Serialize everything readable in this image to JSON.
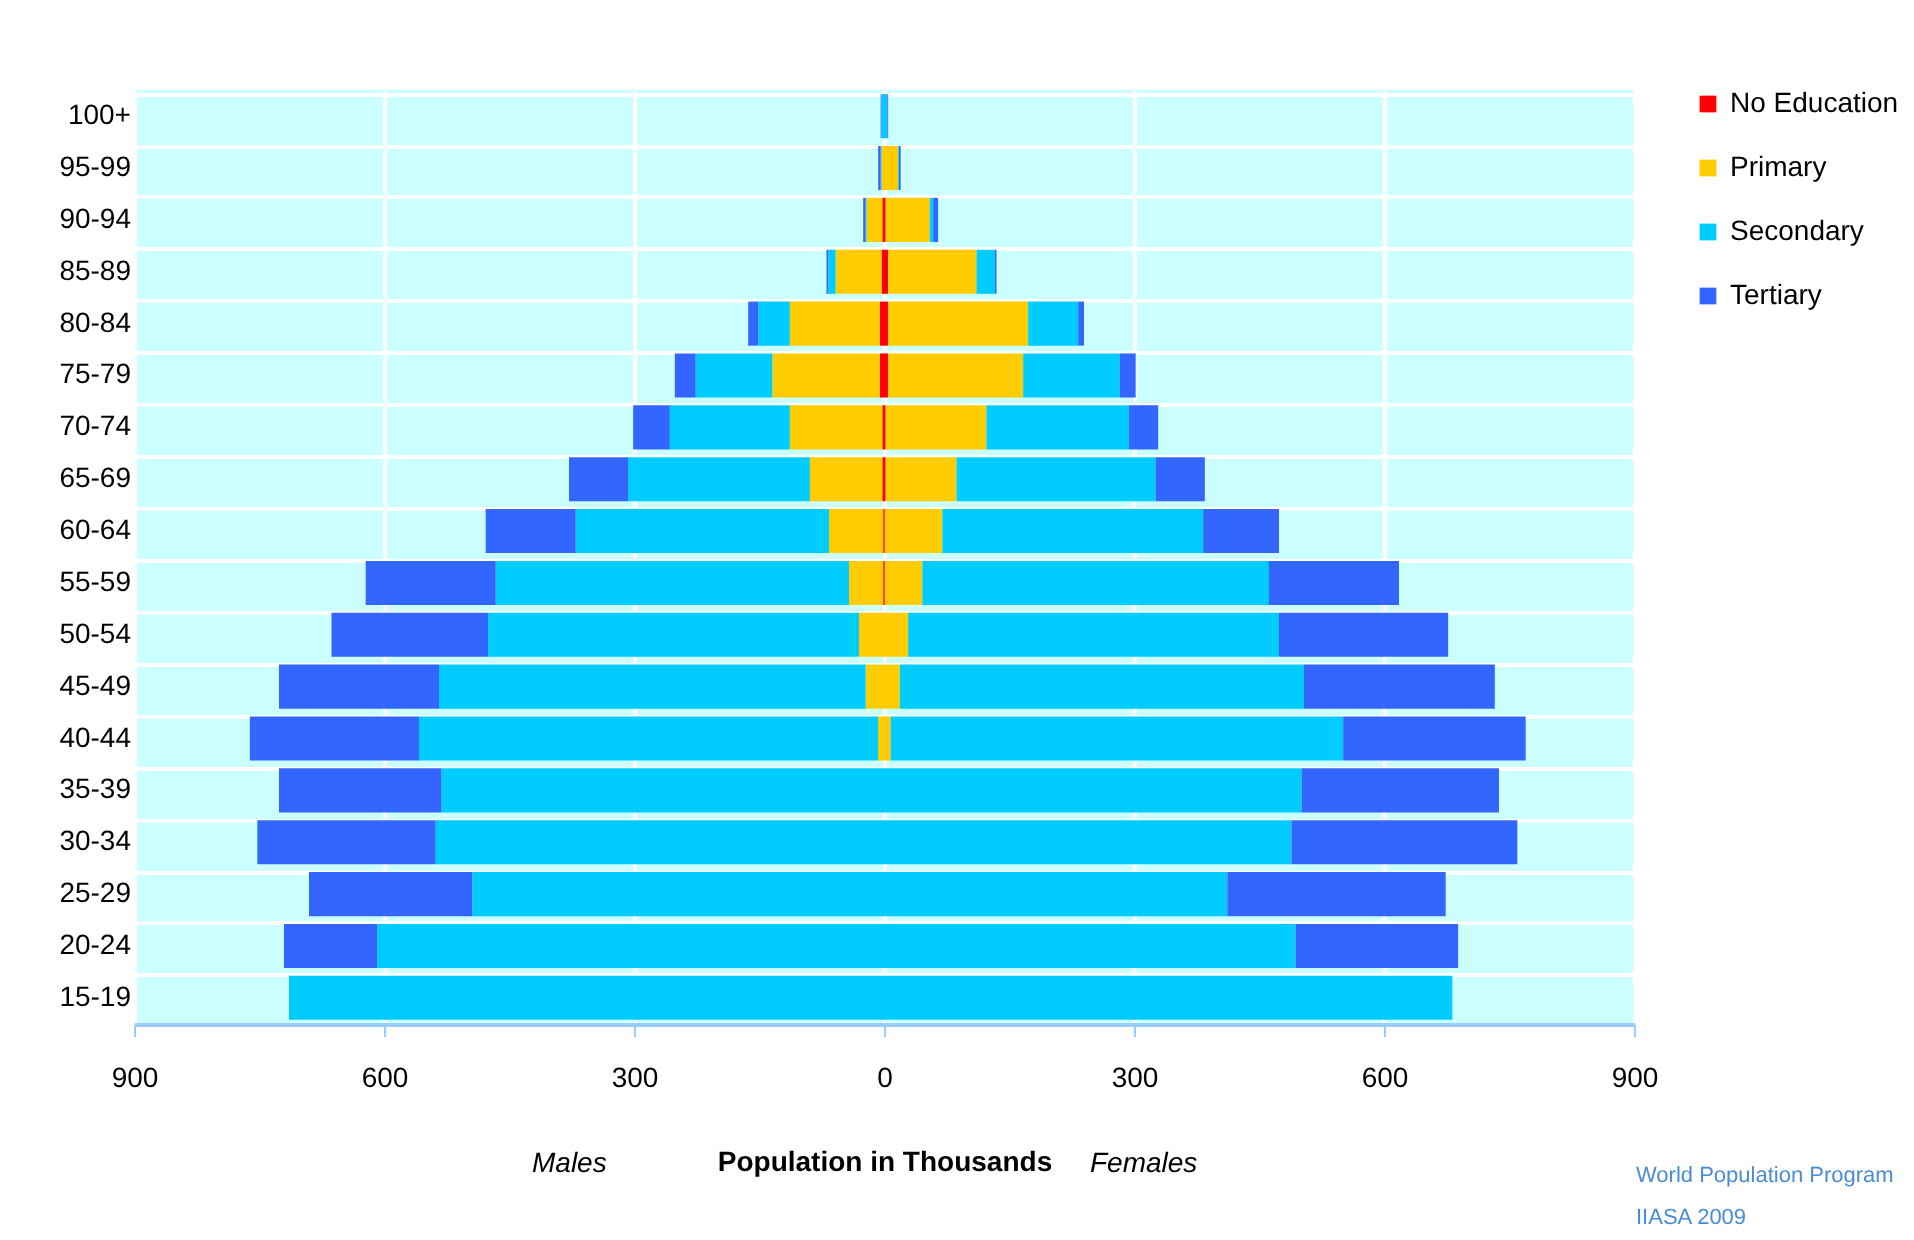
{
  "chart_data": {
    "type": "bar",
    "orientation": "horizontal",
    "stacked": true,
    "xlabel": "Population in Thousands",
    "annotations": [
      "Males",
      "Females",
      "World Population Program",
      "IIASA 2009"
    ],
    "categories": [
      "100+",
      "95-99",
      "90-94",
      "85-89",
      "80-84",
      "75-79",
      "70-74",
      "65-69",
      "60-64",
      "55-59",
      "50-54",
      "45-49",
      "40-44",
      "35-39",
      "30-34",
      "25-29",
      "20-24",
      "15-19"
    ],
    "series": [
      {
        "color": "#ff0000",
        "values": [
          null,
          null,
          -2,
          -3,
          -5,
          -5,
          -2,
          -2,
          -1,
          -1,
          null,
          null,
          null,
          null,
          null,
          null,
          null,
          null
        ]
      },
      {
        "color": "#ffcc00",
        "values": [
          null,
          -3,
          -19,
          -55,
          -108,
          -129,
          -111,
          -87,
          -65,
          -41,
          -30,
          -22,
          -7,
          null,
          null,
          null,
          null,
          null
        ]
      },
      {
        "color": "#00ccff",
        "values": [
          -3,
          -1,
          -1,
          -9,
          -38,
          -92,
          -144,
          -218,
          -304,
          -424,
          -445,
          -512,
          -551,
          -531,
          -538,
          -494,
          -608,
          -714
        ]
      },
      {
        "color": "#3366ff",
        "values": [
          -1,
          -3,
          -3,
          -2,
          -12,
          -25,
          -44,
          -71,
          -108,
          -156,
          -188,
          -192,
          -203,
          -195,
          -214,
          -196,
          -112,
          null
        ]
      },
      {
        "name": "No Education",
        "color": "#ff0000",
        "values": [
          null,
          null,
          2,
          5,
          5,
          5,
          2,
          2,
          1,
          1,
          null,
          null,
          null,
          null,
          null,
          null,
          null,
          null
        ]
      },
      {
        "name": "Primary",
        "color": "#ffcc00",
        "values": [
          null,
          17,
          53,
          106,
          168,
          162,
          121,
          85,
          69,
          45,
          29,
          19,
          8,
          null,
          null,
          null,
          null,
          null
        ]
      },
      {
        "name": "Secondary",
        "color": "#00ccff",
        "values": [
          4,
          1,
          4,
          22,
          60,
          116,
          171,
          239,
          313,
          416,
          445,
          485,
          543,
          501,
          489,
          412,
          494,
          682
        ]
      },
      {
        "name": "Tertiary",
        "color": "#3366ff",
        "values": [
          1,
          2,
          6,
          2,
          7,
          19,
          35,
          59,
          91,
          156,
          203,
          229,
          219,
          237,
          271,
          262,
          195,
          null
        ]
      }
    ],
    "xlim": [
      -900,
      900
    ],
    "xticks": [
      {
        "value": -900,
        "label": "900"
      },
      {
        "value": -600,
        "label": "600"
      },
      {
        "value": -300,
        "label": "300"
      },
      0,
      300,
      600,
      900
    ],
    "grid": true,
    "legend": "right"
  }
}
